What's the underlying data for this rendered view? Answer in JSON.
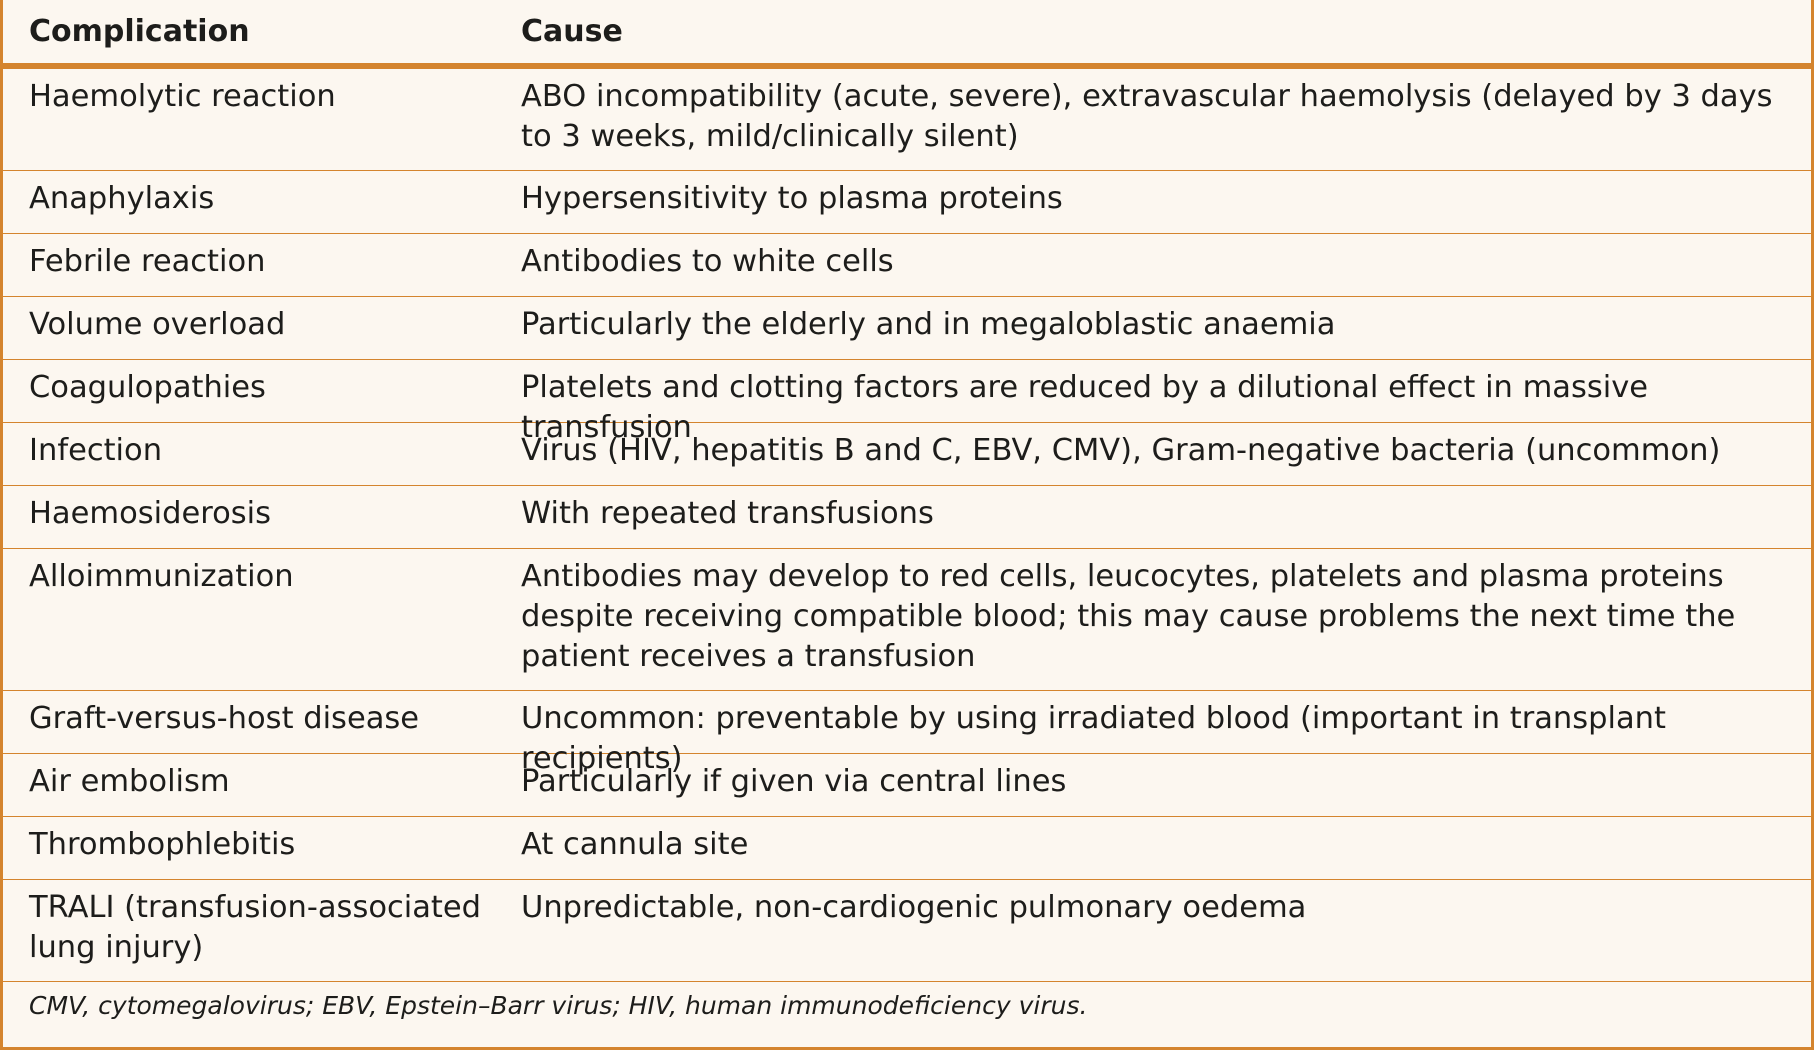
{
  "table": {
    "headers": [
      "Complication",
      "Cause"
    ],
    "rows": [
      {
        "complication": "Haemolytic reaction",
        "cause": "ABO incompatibility (acute, severe), extravascular haemolysis (delayed by 3 days to 3 weeks, mild/clinically silent)"
      },
      {
        "complication": "Anaphylaxis",
        "cause": "Hypersensitivity to plasma proteins"
      },
      {
        "complication": "Febrile reaction",
        "cause": "Antibodies to white cells"
      },
      {
        "complication": "Volume overload",
        "cause": "Particularly the elderly and in megaloblastic anaemia"
      },
      {
        "complication": "Coagulopathies",
        "cause": "Platelets and clotting factors are reduced by a dilutional effect in massive transfusion"
      },
      {
        "complication": "Infection",
        "cause": "Virus (HIV, hepatitis B and C, EBV, CMV), Gram-negative bacteria (uncommon)"
      },
      {
        "complication": "Haemosiderosis",
        "cause": "With repeated transfusions"
      },
      {
        "complication": "Alloimmunization",
        "cause": "Antibodies may develop to red cells, leucocytes, platelets and plasma proteins despite receiving compatible blood; this may cause problems the next time the patient receives a transfusion"
      },
      {
        "complication": "Graft-versus-host disease",
        "cause": "Uncommon: preventable by using irradiated blood (important in transplant recipients)"
      },
      {
        "complication": "Air embolism",
        "cause": "Particularly if given via central lines"
      },
      {
        "complication": "Thrombophlebitis",
        "cause": "At cannula site"
      },
      {
        "complication": "TRALI (transfusion-associated lung injury)",
        "cause": "Unpredictable, non-cardiogenic pulmonary oedema"
      }
    ],
    "footnote": "CMV, cytomegalovirus; EBV, Epstein–Barr virus; HIV, human immunodeficiency virus."
  },
  "colors": {
    "border": "#d4842e",
    "background": "#fcf7f0",
    "text": "#1d1d1b"
  }
}
